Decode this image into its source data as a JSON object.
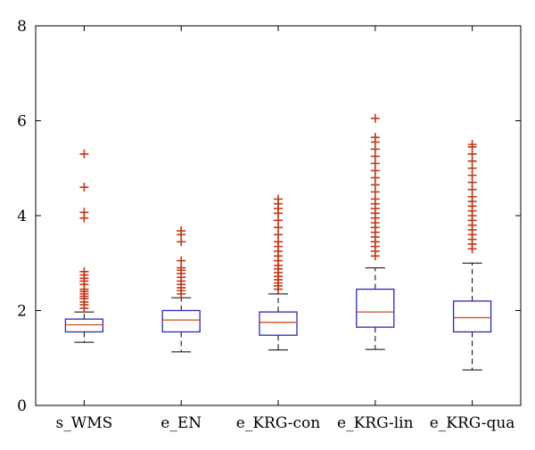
{
  "chart_data": {
    "type": "boxplot",
    "title": "",
    "xlabel": "",
    "ylabel": "",
    "ylim": [
      0,
      8
    ],
    "yticks": [
      0,
      2,
      4,
      6,
      8
    ],
    "grid": false,
    "categories": [
      "s_WMS",
      "e_EN",
      "e_KRG-con",
      "e_KRG-lin",
      "e_KRG-qua"
    ],
    "boxes": [
      {
        "q1": 1.55,
        "median": 1.7,
        "q3": 1.82,
        "whisker_low": 1.33,
        "whisker_high": 1.97,
        "outliers": [
          2.05,
          2.12,
          2.18,
          2.25,
          2.3,
          2.35,
          2.4,
          2.45,
          2.55,
          2.62,
          2.68,
          2.75,
          2.82,
          3.95,
          4.07,
          4.6,
          5.3
        ]
      },
      {
        "q1": 1.55,
        "median": 1.8,
        "q3": 2.0,
        "whisker_low": 1.13,
        "whisker_high": 2.27,
        "outliers": [
          2.35,
          2.42,
          2.48,
          2.55,
          2.62,
          2.7,
          2.78,
          2.85,
          2.9,
          3.05,
          3.45,
          3.6,
          3.68
        ]
      },
      {
        "q1": 1.48,
        "median": 1.75,
        "q3": 1.97,
        "whisker_low": 1.17,
        "whisker_high": 2.35,
        "outliers": [
          2.45,
          2.52,
          2.58,
          2.65,
          2.72,
          2.8,
          2.88,
          2.95,
          3.05,
          3.15,
          3.25,
          3.35,
          3.45,
          3.6,
          3.75,
          3.9,
          4.05,
          4.15,
          4.25,
          4.35
        ]
      },
      {
        "q1": 1.65,
        "median": 1.97,
        "q3": 2.45,
        "whisker_low": 1.18,
        "whisker_high": 2.9,
        "outliers": [
          3.15,
          3.25,
          3.35,
          3.45,
          3.55,
          3.65,
          3.75,
          3.85,
          3.95,
          4.05,
          4.15,
          4.25,
          4.35,
          4.5,
          4.65,
          4.8,
          4.95,
          5.1,
          5.25,
          5.4,
          5.55,
          5.65,
          6.05
        ]
      },
      {
        "q1": 1.55,
        "median": 1.85,
        "q3": 2.2,
        "whisker_low": 0.75,
        "whisker_high": 3.0,
        "outliers": [
          3.3,
          3.4,
          3.5,
          3.6,
          3.7,
          3.8,
          3.9,
          4.0,
          4.1,
          4.2,
          4.3,
          4.4,
          4.55,
          4.7,
          4.85,
          5.0,
          5.15,
          5.3,
          5.45,
          5.5
        ]
      }
    ],
    "colors": {
      "box": "#2b2bb5",
      "median": "#d04a1a",
      "whisker": "#000000",
      "outlier": "#c0391a",
      "axes": "#000000"
    }
  }
}
